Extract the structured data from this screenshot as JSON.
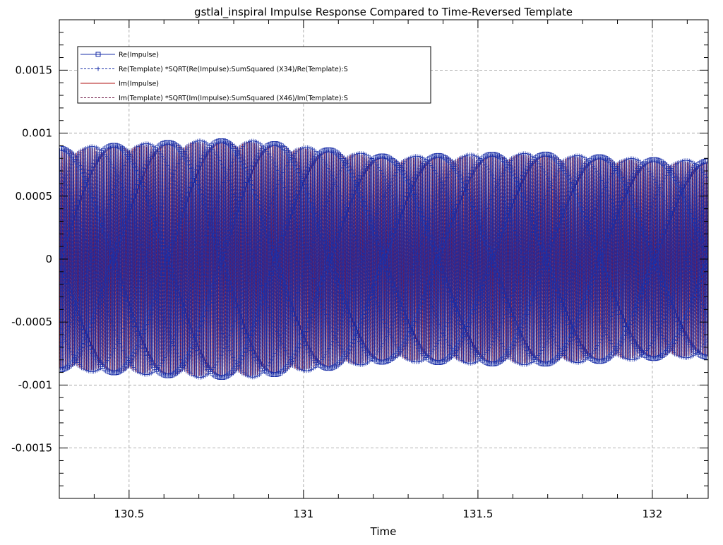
{
  "chart_data": {
    "type": "line",
    "title": "gstlal_inspiral Impulse Response Compared to Time-Reversed Template",
    "xlabel": "Time",
    "ylabel": "",
    "xlim": [
      130.3,
      132.16
    ],
    "ylim": [
      -0.0019,
      0.0019
    ],
    "x_ticks": [
      "130.5",
      "131",
      "131.5",
      "132"
    ],
    "x_tick_values": [
      130.5,
      131,
      131.5,
      132
    ],
    "y_ticks": [
      "0.0015",
      "0.001",
      "0.0005",
      "0",
      "-0.0005",
      "-0.001",
      "-0.0015"
    ],
    "y_tick_values": [
      0.0015,
      0.001,
      0.0005,
      0,
      -0.0005,
      -0.001,
      -0.0015
    ],
    "grid": true,
    "legend_position": "top-left",
    "oscillation_frequency_hz": 200,
    "series": [
      {
        "name": "Re(Impulse)",
        "color": "#1a2fa8",
        "style": "solid",
        "marker": "square",
        "envelope": {
          "x": [
            130.3,
            130.5,
            130.7,
            130.85,
            131.0,
            131.1,
            131.2,
            131.25,
            131.35,
            131.5,
            131.65,
            131.8,
            132.0,
            132.16
          ],
          "amp": [
            0.00088,
            0.00091,
            0.00094,
            0.00094,
            0.00089,
            0.00086,
            0.00083,
            0.00081,
            0.00082,
            0.00083,
            0.00084,
            0.00082,
            0.00079,
            0.00078
          ]
        }
      },
      {
        "name": "Re(Template) *SQRT(Re(Impulse):SumSquared (X34)/Re(Template):S",
        "color": "#1a2fa8",
        "style": "dashed",
        "marker": "plus",
        "envelope": {
          "x": [
            130.3,
            130.5,
            130.7,
            130.85,
            131.0,
            131.1,
            131.2,
            131.25,
            131.35,
            131.5,
            131.65,
            131.8,
            132.0,
            132.16
          ],
          "amp": [
            0.00088,
            0.00091,
            0.00094,
            0.00094,
            0.00089,
            0.00086,
            0.00083,
            0.00081,
            0.00082,
            0.00083,
            0.00084,
            0.00082,
            0.00079,
            0.00078
          ]
        }
      },
      {
        "name": "Im(Impulse)",
        "color": "#b01010",
        "style": "solid",
        "marker": "none",
        "envelope": {
          "x": [
            130.3,
            130.5,
            130.7,
            130.85,
            131.0,
            131.1,
            131.2,
            131.25,
            131.35,
            131.5,
            131.65,
            131.8,
            132.0,
            132.16
          ],
          "amp": [
            0.00087,
            0.0009,
            0.00093,
            0.00093,
            0.00088,
            0.00085,
            0.00082,
            0.0008,
            0.00081,
            0.00082,
            0.00083,
            0.00081,
            0.00078,
            0.00077
          ]
        }
      },
      {
        "name": "Im(Template) *SQRT(Im(Impulse):SumSquared (X46)/Im(Template):S",
        "color": "#6a1040",
        "style": "dashed",
        "marker": "none",
        "envelope": {
          "x": [
            130.3,
            130.5,
            130.7,
            130.85,
            131.0,
            131.1,
            131.2,
            131.25,
            131.35,
            131.5,
            131.65,
            131.8,
            132.0,
            132.16
          ],
          "amp": [
            0.00087,
            0.0009,
            0.00093,
            0.00093,
            0.00088,
            0.00085,
            0.00082,
            0.0008,
            0.00081,
            0.00082,
            0.00083,
            0.00081,
            0.00078,
            0.00077
          ]
        }
      }
    ]
  }
}
